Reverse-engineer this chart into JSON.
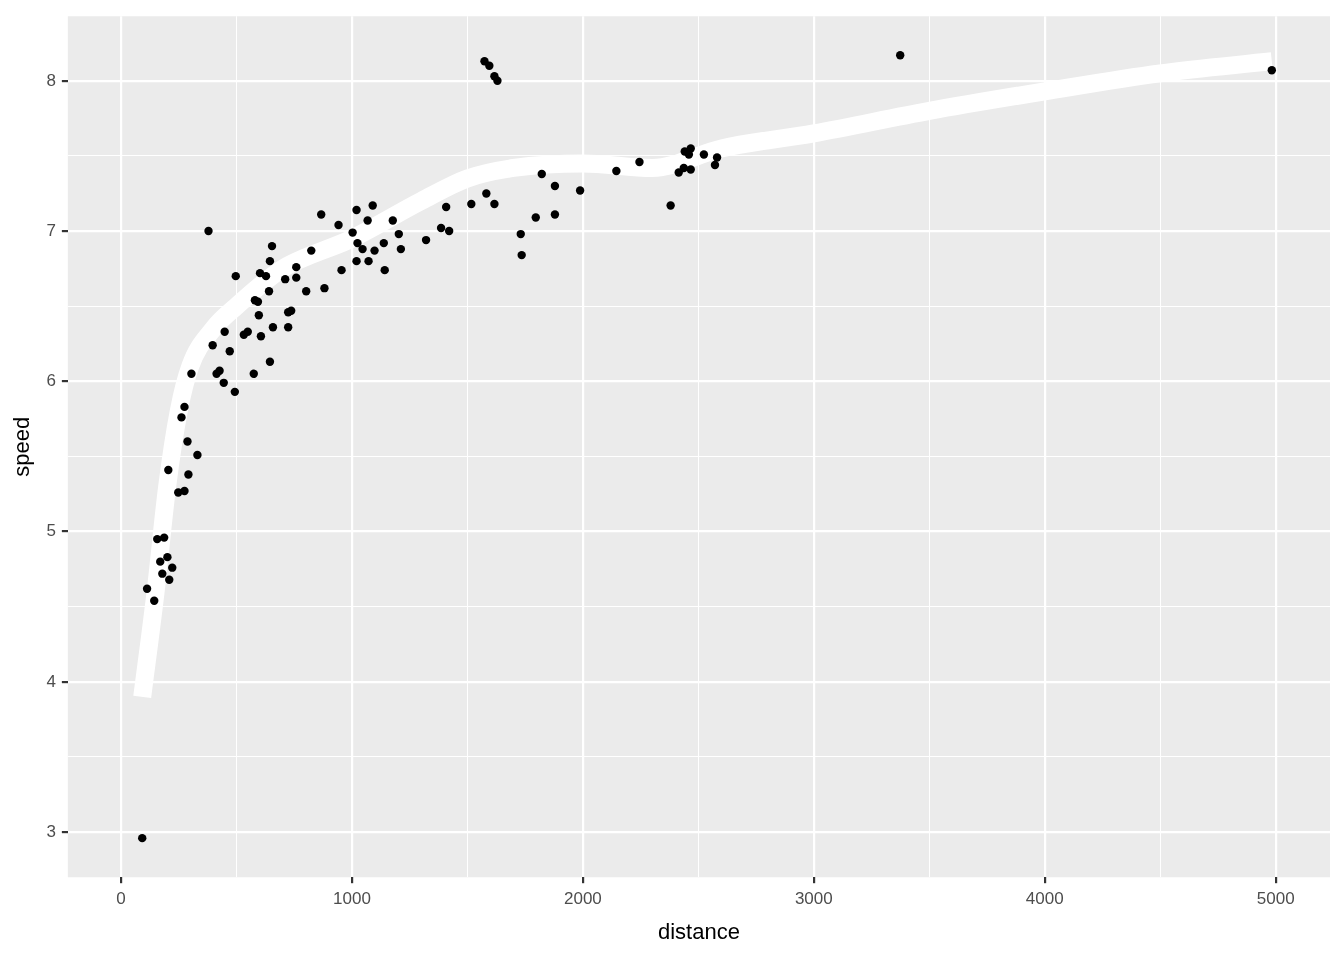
{
  "chart_data": {
    "type": "scatter",
    "xlabel": "distance",
    "ylabel": "speed",
    "xlim": [
      -230,
      5235
    ],
    "ylim": [
      2.7,
      8.43
    ],
    "xticks": [
      0,
      {
        "value": 500,
        "label": null
      },
      1000,
      {
        "value": 1500,
        "label": null
      },
      2000,
      {
        "value": 2500,
        "label": null
      },
      3000,
      {
        "value": 3500,
        "label": null
      },
      4000,
      {
        "value": 4500,
        "label": null
      },
      5000
    ],
    "yticks": [
      3,
      {
        "value": 3.5,
        "label": null
      },
      4,
      {
        "value": 4.5,
        "label": null
      },
      5,
      {
        "value": 5.5,
        "label": null
      },
      6,
      {
        "value": 6.5,
        "label": null
      },
      7,
      {
        "value": 7.5,
        "label": null
      },
      8
    ],
    "grid": true,
    "legend": false,
    "marker": "circle",
    "series": [
      {
        "type": "line",
        "color": "#ffffff",
        "line_style": "solid",
        "marker": "none",
        "x": [
          92,
          150,
          200,
          250,
          300,
          400,
          500,
          700,
          1000,
          1300,
          1500,
          1700,
          2000,
          2300,
          2600,
          3000,
          3500,
          4000,
          4500,
          4983
        ],
        "values": [
          3.9,
          4.6,
          5.3,
          5.8,
          6.1,
          6.35,
          6.5,
          6.75,
          6.95,
          7.2,
          7.35,
          7.42,
          7.45,
          7.42,
          7.55,
          7.65,
          7.8,
          7.93,
          8.05,
          8.13
        ]
      },
      {
        "color": "#000000",
        "x": [
          92,
          113,
          144,
          157,
          170,
          187,
          179,
          201,
          209,
          222,
          205,
          248,
          275,
          262,
          275,
          288,
          292,
          331,
          305,
          379,
          397,
          414,
          427,
          445,
          449,
          471,
          493,
          497,
          532,
          549,
          575,
          580,
          593,
          597,
          602,
          606,
          628,
          641,
          645,
          645,
          654,
          658,
          711,
          724,
          724,
          737,
          759,
          759,
          802,
          824,
          867,
          881,
          942,
          955,
          1003,
          1020,
          1020,
          1024,
          1046,
          1068,
          1072,
          1090,
          1098,
          1138,
          1142,
          1177,
          1203,
          1212,
          1321,
          1386,
          1408,
          1421,
          1517,
          1574,
          1582,
          1595,
          1617,
          1630,
          1617,
          1731,
          1735,
          1796,
          1822,
          1879,
          1879,
          1988,
          2145,
          2245,
          2380,
          2415,
          2437,
          2441,
          2467,
          2459,
          2467,
          2524,
          2572,
          2581,
          3374,
          4983
        ],
        "values": [
          2.96,
          4.62,
          4.54,
          4.95,
          4.8,
          4.96,
          4.72,
          4.83,
          4.68,
          4.76,
          5.41,
          5.26,
          5.27,
          5.76,
          5.83,
          5.6,
          5.38,
          5.51,
          6.05,
          7.0,
          6.24,
          6.05,
          6.07,
          5.99,
          6.33,
          6.2,
          5.93,
          6.7,
          6.31,
          6.33,
          6.05,
          6.54,
          6.53,
          6.44,
          6.72,
          6.3,
          6.7,
          6.6,
          6.8,
          6.13,
          6.9,
          6.36,
          6.68,
          6.46,
          6.36,
          6.47,
          6.76,
          6.69,
          6.6,
          6.87,
          7.11,
          6.62,
          7.04,
          6.74,
          6.99,
          6.8,
          7.14,
          6.92,
          6.88,
          7.07,
          6.8,
          7.17,
          6.87,
          6.92,
          6.74,
          7.07,
          6.98,
          6.88,
          6.94,
          7.02,
          7.16,
          7.0,
          7.18,
          8.13,
          7.25,
          8.1,
          8.03,
          8.0,
          7.18,
          6.98,
          6.84,
          7.09,
          7.38,
          7.11,
          7.3,
          7.27,
          7.4,
          7.46,
          7.17,
          7.39,
          7.42,
          7.53,
          7.41,
          7.51,
          7.55,
          7.51,
          7.44,
          7.49,
          8.17,
          8.07
        ]
      }
    ]
  }
}
